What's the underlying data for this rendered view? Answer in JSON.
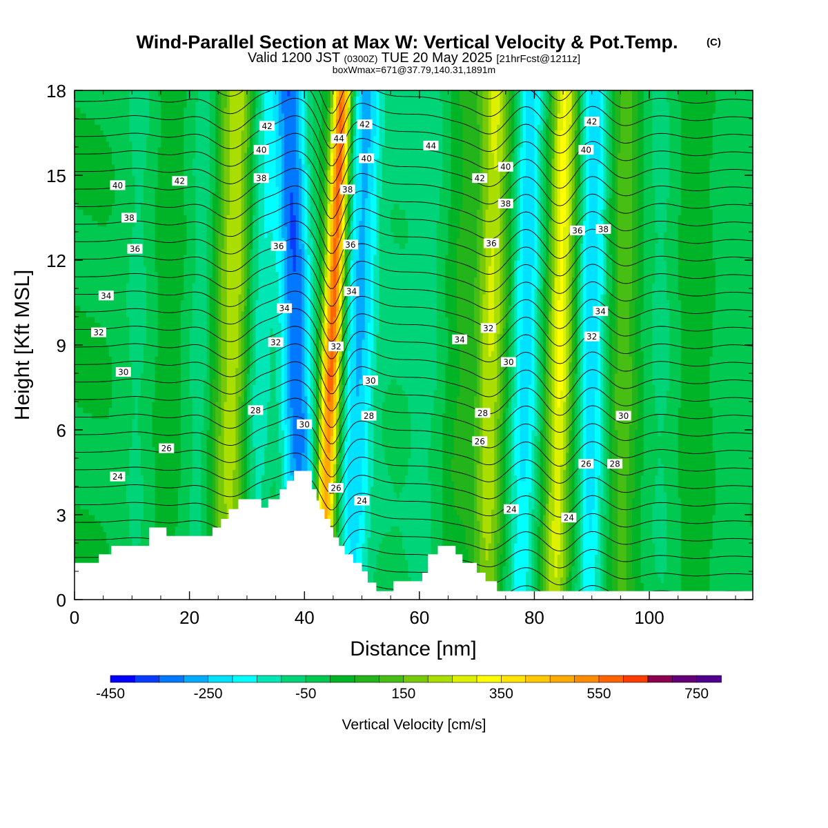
{
  "chart_data": {
    "type": "contour",
    "title": "Wind-Parallel Section at Max W: Vertical Velocity & Pot.Temp.",
    "title_mark": "(C)",
    "subtitle_main": "Valid 1200 JST",
    "subtitle_zulu": "(0300Z)",
    "subtitle_date": "TUE 20 May 2025",
    "subtitle_fcst": "[21hrFcst@1211z]",
    "subtitle2": "boxWmax=671@37.79,140.31,1891m",
    "xlabel": "Distance [nm]",
    "ylabel": "Height [Kft MSL]",
    "xlim": [
      0,
      118
    ],
    "ylim": [
      0,
      18
    ],
    "x_ticks": [
      "0",
      "20",
      "40",
      "60",
      "80",
      "100"
    ],
    "x_tick_values": [
      0,
      20,
      40,
      60,
      80,
      100
    ],
    "y_ticks": [
      "0",
      "3",
      "6",
      "9",
      "12",
      "15",
      "18"
    ],
    "y_tick_values": [
      0,
      3,
      6,
      9,
      12,
      15,
      18
    ],
    "colorbar": {
      "label": "Vertical Velocity [cm/s]",
      "min": -450,
      "max": 800,
      "step": 50,
      "tick_labels": [
        "-450",
        "-250",
        "-50",
        "150",
        "350",
        "550",
        "750"
      ],
      "tick_values": [
        -450,
        -250,
        -50,
        150,
        350,
        550,
        750
      ],
      "colors": [
        "#0000ff",
        "#0a3cff",
        "#0078ff",
        "#00aaff",
        "#00e0ff",
        "#00ffff",
        "#00e6b4",
        "#00d478",
        "#00c850",
        "#00b428",
        "#22b41a",
        "#46be14",
        "#78c80a",
        "#aade00",
        "#dcf000",
        "#ffff00",
        "#ffe400",
        "#ffc800",
        "#ffaa00",
        "#ff8c00",
        "#ff6400",
        "#ff3c00",
        "#ff0000",
        "#dc0028",
        "#b4003c",
        "#8c0050",
        "#640078",
        "#50008c"
      ]
    },
    "velocity_bands": [
      {
        "center_nm": 4,
        "slope_nm_per_kft": -0.2,
        "width_nm": 6,
        "value": 0
      },
      {
        "center_nm": 11,
        "slope_nm_per_kft": 0.05,
        "width_nm": 3,
        "value": -60
      },
      {
        "center_nm": 16,
        "slope_nm_per_kft": 0.05,
        "width_nm": 3,
        "value": 30
      },
      {
        "center_nm": 22,
        "slope_nm_per_kft": 0.1,
        "width_nm": 2.5,
        "value": -80
      },
      {
        "center_nm": 27.5,
        "slope_nm_per_kft": 0.1,
        "width_nm": 3.2,
        "value": 230
      },
      {
        "center_nm": 32,
        "slope_nm_per_kft": 0.1,
        "width_nm": 2.5,
        "value": -150
      },
      {
        "center_nm": 38.5,
        "slope_nm_per_kft": -0.12,
        "width_nm": 2.8,
        "value": -330
      },
      {
        "center_nm": 44.8,
        "slope_nm_per_kft": 0.2,
        "width_nm": 1.7,
        "value": 560
      },
      {
        "center_nm": 49.5,
        "slope_nm_per_kft": 0.15,
        "width_nm": 2.8,
        "value": -250
      },
      {
        "center_nm": 55,
        "slope_nm_per_kft": 0.15,
        "width_nm": 3,
        "value": -40
      },
      {
        "center_nm": 61,
        "slope_nm_per_kft": 0.1,
        "width_nm": 4,
        "value": -70
      },
      {
        "center_nm": 67,
        "slope_nm_per_kft": 0.15,
        "width_nm": 3,
        "value": 60
      },
      {
        "center_nm": 72.5,
        "slope_nm_per_kft": 0.1,
        "width_nm": 2.5,
        "value": 240
      },
      {
        "center_nm": 78.5,
        "slope_nm_per_kft": 0.1,
        "width_nm": 2.5,
        "value": -220
      },
      {
        "center_nm": 84.5,
        "slope_nm_per_kft": 0.1,
        "width_nm": 2.3,
        "value": 300
      },
      {
        "center_nm": 90,
        "slope_nm_per_kft": 0.05,
        "width_nm": 2.5,
        "value": -230
      },
      {
        "center_nm": 95.5,
        "slope_nm_per_kft": 0.05,
        "width_nm": 2.5,
        "value": 130
      },
      {
        "center_nm": 102,
        "slope_nm_per_kft": 0.0,
        "width_nm": 3,
        "value": -60
      },
      {
        "center_nm": 108,
        "slope_nm_per_kft": 0.0,
        "width_nm": 3,
        "value": 40
      },
      {
        "center_nm": 114,
        "slope_nm_per_kft": 0.0,
        "width_nm": 3,
        "value": -40
      }
    ],
    "terrain_kft": [
      [
        0,
        1.3
      ],
      [
        4.2,
        1.3
      ],
      [
        4.2,
        1.6
      ],
      [
        6.4,
        1.6
      ],
      [
        6.4,
        1.9
      ],
      [
        13,
        1.9
      ],
      [
        13,
        2.55
      ],
      [
        16,
        2.55
      ],
      [
        16,
        2.25
      ],
      [
        24,
        2.25
      ],
      [
        24,
        2.55
      ],
      [
        25.5,
        2.55
      ],
      [
        25.5,
        2.85
      ],
      [
        26.8,
        2.85
      ],
      [
        26.8,
        3.2
      ],
      [
        28.5,
        3.2
      ],
      [
        28.5,
        3.55
      ],
      [
        32.5,
        3.55
      ],
      [
        32.5,
        3.25
      ],
      [
        33.7,
        3.25
      ],
      [
        33.7,
        3.55
      ],
      [
        35.7,
        3.55
      ],
      [
        35.7,
        3.9
      ],
      [
        36.9,
        3.9
      ],
      [
        36.9,
        4.2
      ],
      [
        38.2,
        4.2
      ],
      [
        38.2,
        4.55
      ],
      [
        41.3,
        4.55
      ],
      [
        41.3,
        3.9
      ],
      [
        42.1,
        3.9
      ],
      [
        42.1,
        3.5
      ],
      [
        42.6,
        3.5
      ],
      [
        42.6,
        3.2
      ],
      [
        43.5,
        3.2
      ],
      [
        43.5,
        2.85
      ],
      [
        44.5,
        2.85
      ],
      [
        44.5,
        2.55
      ],
      [
        45,
        2.55
      ],
      [
        45,
        2.2
      ],
      [
        46,
        2.2
      ],
      [
        46,
        1.9
      ],
      [
        47,
        1.9
      ],
      [
        47,
        1.6
      ],
      [
        48.5,
        1.6
      ],
      [
        48.5,
        1.3
      ],
      [
        50,
        1.3
      ],
      [
        50,
        1.0
      ],
      [
        51,
        1.0
      ],
      [
        51,
        0.6
      ],
      [
        52.5,
        0.6
      ],
      [
        52.5,
        0.3
      ],
      [
        55.5,
        0.3
      ],
      [
        55.5,
        0.65
      ],
      [
        60.5,
        0.65
      ],
      [
        60.5,
        0.95
      ],
      [
        61.5,
        0.95
      ],
      [
        61.5,
        1.6
      ],
      [
        63.2,
        1.6
      ],
      [
        63.2,
        1.9
      ],
      [
        66.3,
        1.9
      ],
      [
        66.3,
        1.6
      ],
      [
        67.5,
        1.6
      ],
      [
        67.5,
        1.3
      ],
      [
        70,
        1.3
      ],
      [
        70,
        0.95
      ],
      [
        71.5,
        0.95
      ],
      [
        71.5,
        0.65
      ],
      [
        73.5,
        0.65
      ],
      [
        73.5,
        0.3
      ],
      [
        118,
        0.3
      ]
    ],
    "theta_contours": [
      {
        "label": "24",
        "x": 7.5,
        "y": 4.35
      },
      {
        "label": "26",
        "x": 16,
        "y": 5.35
      },
      {
        "label": "28",
        "x": 31.5,
        "y": 6.7
      },
      {
        "label": "30",
        "x": 8.5,
        "y": 8.05
      },
      {
        "label": "30",
        "x": 40,
        "y": 6.2
      },
      {
        "label": "32",
        "x": 4.2,
        "y": 9.45
      },
      {
        "label": "32",
        "x": 35,
        "y": 9.1
      },
      {
        "label": "34",
        "x": 5.5,
        "y": 10.75
      },
      {
        "label": "34",
        "x": 36.5,
        "y": 10.3
      },
      {
        "label": "36",
        "x": 10.5,
        "y": 12.4
      },
      {
        "label": "36",
        "x": 35.5,
        "y": 12.5
      },
      {
        "label": "38",
        "x": 9.5,
        "y": 13.5
      },
      {
        "label": "38",
        "x": 32.5,
        "y": 14.9
      },
      {
        "label": "40",
        "x": 7.5,
        "y": 14.65
      },
      {
        "label": "40",
        "x": 32.5,
        "y": 15.9
      },
      {
        "label": "42",
        "x": 18.3,
        "y": 14.8
      },
      {
        "label": "42",
        "x": 33.5,
        "y": 16.75
      },
      {
        "label": "44",
        "x": 46,
        "y": 16.3
      },
      {
        "label": "42",
        "x": 50.5,
        "y": 16.8
      },
      {
        "label": "40",
        "x": 50.8,
        "y": 15.6
      },
      {
        "label": "38",
        "x": 47.5,
        "y": 14.5
      },
      {
        "label": "36",
        "x": 48,
        "y": 12.55
      },
      {
        "label": "34",
        "x": 48.2,
        "y": 10.9
      },
      {
        "label": "32",
        "x": 45.5,
        "y": 8.95
      },
      {
        "label": "30",
        "x": 51.5,
        "y": 7.75
      },
      {
        "label": "28",
        "x": 51.2,
        "y": 6.5
      },
      {
        "label": "26",
        "x": 45.5,
        "y": 3.95
      },
      {
        "label": "24",
        "x": 50,
        "y": 3.5
      },
      {
        "label": "44",
        "x": 62,
        "y": 16.05
      },
      {
        "label": "42",
        "x": 70.5,
        "y": 14.9
      },
      {
        "label": "40",
        "x": 75,
        "y": 15.3
      },
      {
        "label": "38",
        "x": 75,
        "y": 14.0
      },
      {
        "label": "36",
        "x": 72.5,
        "y": 12.6
      },
      {
        "label": "34",
        "x": 67,
        "y": 9.2
      },
      {
        "label": "32",
        "x": 72,
        "y": 9.6
      },
      {
        "label": "30",
        "x": 75.5,
        "y": 8.4
      },
      {
        "label": "28",
        "x": 71,
        "y": 6.6
      },
      {
        "label": "26",
        "x": 70.5,
        "y": 5.6
      },
      {
        "label": "24",
        "x": 76,
        "y": 3.2
      },
      {
        "label": "24",
        "x": 86,
        "y": 2.9
      },
      {
        "label": "26",
        "x": 89,
        "y": 4.8
      },
      {
        "label": "28",
        "x": 94,
        "y": 4.8
      },
      {
        "label": "30",
        "x": 95.5,
        "y": 6.5
      },
      {
        "label": "32",
        "x": 90,
        "y": 9.3
      },
      {
        "label": "34",
        "x": 91.5,
        "y": 10.2
      },
      {
        "label": "36",
        "x": 87.5,
        "y": 13.05
      },
      {
        "label": "38",
        "x": 92,
        "y": 13.1
      },
      {
        "label": "40",
        "x": 89,
        "y": 15.9
      },
      {
        "label": "42",
        "x": 90,
        "y": 16.9
      }
    ]
  }
}
